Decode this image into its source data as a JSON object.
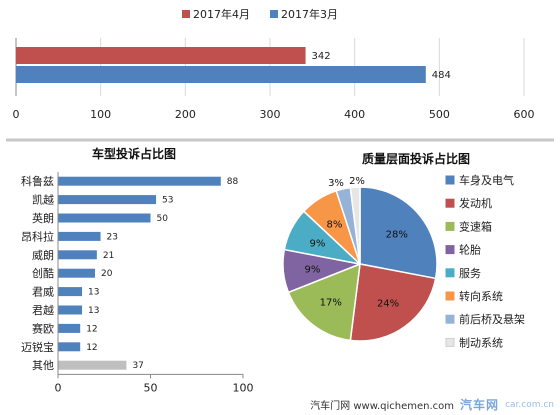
{
  "chart_data": [
    {
      "type": "bar",
      "orientation": "horizontal",
      "title": "",
      "categories": [
        ""
      ],
      "series": [
        {
          "name": "2017年4月",
          "color": "#C0504D",
          "values": [
            342
          ],
          "labels": [
            "342"
          ]
        },
        {
          "name": "2017年3月",
          "color": "#4F81BD",
          "values": [
            484
          ],
          "labels": [
            "484"
          ]
        }
      ],
      "xlim": [
        0,
        600
      ],
      "xticks": [
        "0",
        "100",
        "200",
        "300",
        "400",
        "500",
        "600"
      ],
      "legend": "top",
      "grid": true
    },
    {
      "type": "bar",
      "orientation": "horizontal",
      "title": "车型投诉占比图",
      "categories": [
        "科鲁兹",
        "凯越",
        "英朗",
        "昂科拉",
        "威朗",
        "创酷",
        "君威",
        "君越",
        "赛欧",
        "迈锐宝",
        "其他"
      ],
      "values": [
        88,
        53,
        50,
        23,
        21,
        20,
        13,
        13,
        12,
        12,
        37
      ],
      "labels": [
        "88",
        "53",
        "50",
        "23",
        "21",
        "20",
        "13",
        "13",
        "12",
        "12",
        "37"
      ],
      "colors": [
        "#4F81BD",
        "#4F81BD",
        "#4F81BD",
        "#4F81BD",
        "#4F81BD",
        "#4F81BD",
        "#4F81BD",
        "#4F81BD",
        "#4F81BD",
        "#4F81BD",
        "#BFBFBF"
      ],
      "xlim": [
        0,
        100
      ],
      "xticks": [
        "0",
        "50",
        "100"
      ],
      "grid": false
    },
    {
      "type": "pie",
      "title": "质量层面投诉占比图",
      "legend": "right",
      "slices": [
        {
          "name": "车身及电气",
          "value": 28,
          "label": "28%",
          "color": "#4F81BD"
        },
        {
          "name": "发动机",
          "value": 24,
          "label": "24%",
          "color": "#C0504D"
        },
        {
          "name": "变速箱",
          "value": 17,
          "label": "17%",
          "color": "#9BBB59"
        },
        {
          "name": "轮胎",
          "value": 9,
          "label": "9%",
          "color": "#8064A2"
        },
        {
          "name": "服务",
          "value": 9,
          "label": "9%",
          "color": "#4BACC6"
        },
        {
          "name": "转向系统",
          "value": 8,
          "label": "8%",
          "color": "#F79646"
        },
        {
          "name": "前后桥及悬架",
          "value": 3,
          "label": "3%",
          "color": "#95B3D7"
        },
        {
          "name": "制动系统",
          "value": 2,
          "label": "2%",
          "color": "#E6E6E6"
        }
      ]
    }
  ],
  "footer": {
    "source": "汽车门网 www.qichemen.com",
    "watermark": "汽车网",
    "watermark_sub": "car.com.cn"
  }
}
